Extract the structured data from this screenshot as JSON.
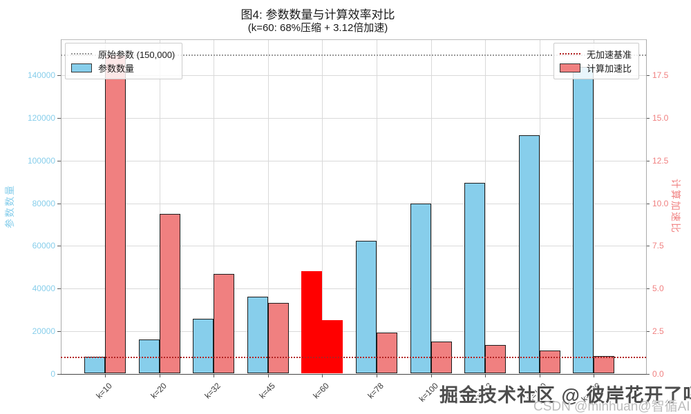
{
  "chart_data": {
    "type": "bar",
    "title": "图4: 参数数量与计算效率对比",
    "subtitle": "(k=60: 68%压缩 + 3.12倍加速)",
    "categories": [
      "k=10",
      "k=20",
      "k=32",
      "k=45",
      "k=60",
      "k=78",
      "k=100",
      "k=112",
      "k=140",
      "k=180"
    ],
    "series": [
      {
        "name": "参数数量",
        "axis": "left",
        "color": "#87CEEB",
        "edge_color": "#1c1c1c",
        "values": [
          8000,
          16000,
          25600,
          36000,
          48000,
          62400,
          80000,
          89600,
          112000,
          144000
        ]
      },
      {
        "name": "计算加速比",
        "axis": "right",
        "color": "#F08080",
        "edge_color": "#1c1c1c",
        "values": [
          18.75,
          9.38,
          5.86,
          4.17,
          3.12,
          2.4,
          1.88,
          1.67,
          1.34,
          1.04
        ]
      }
    ],
    "highlight": {
      "category": "k=60",
      "index": 4,
      "color": "#FF0000"
    },
    "axes": {
      "left": {
        "label": "参数数量",
        "color": "#87CEEB",
        "ticks": [
          "0",
          "20000",
          "40000",
          "60000",
          "80000",
          "100000",
          "120000",
          "140000"
        ],
        "max": 157000
      },
      "right": {
        "label": "计算加速比",
        "color": "#F08080",
        "ticks": [
          "0.0",
          "2.5",
          "5.0",
          "7.5",
          "10.0",
          "12.5",
          "15.0",
          "17.5"
        ],
        "max": 19.625
      },
      "x": {
        "tick_rotation": -45
      }
    },
    "reference_lines": [
      {
        "label": "原始参数 (150,000)",
        "axis": "left",
        "value": 150000,
        "color": "#999999",
        "style": "dotted"
      },
      {
        "label": "无加速基准",
        "axis": "right",
        "value": 1.0,
        "color": "#B22222",
        "style": "dotted"
      }
    ],
    "legend_left": [
      {
        "sample": "line-dotted",
        "color": "#999999",
        "label": "原始参数 (150,000)"
      },
      {
        "sample": "patch",
        "color": "#87CEEB",
        "label": "参数数量"
      }
    ],
    "legend_right": [
      {
        "sample": "line-dotted",
        "color": "#B22222",
        "label": "无加速基准"
      },
      {
        "sample": "patch",
        "color": "#F08080",
        "label": "计算加速比"
      }
    ],
    "grid": true,
    "legend_positions": [
      "upper left",
      "upper right"
    ]
  },
  "watermark": {
    "main": "掘金技术社区 @ 彼岸花开了吗",
    "sub": "CSDN @minhuan@智循AI"
  }
}
